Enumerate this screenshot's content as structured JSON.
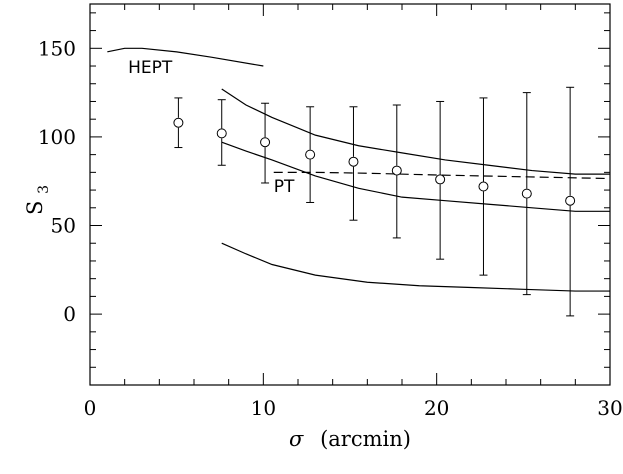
{
  "chart_data": {
    "type": "scatter",
    "title": "",
    "xlabel_symbol": "σ",
    "xlabel_unit": "(arcmin)",
    "ylabel_main": "S",
    "ylabel_sub": "3",
    "xlim": [
      0,
      30
    ],
    "ylim": [
      -40,
      175
    ],
    "xticks": [
      0,
      10,
      20,
      30
    ],
    "yticks": [
      0,
      50,
      100,
      150
    ],
    "grid": false,
    "legend": "none",
    "points": {
      "x": [
        5.1,
        7.6,
        10.1,
        12.7,
        15.2,
        17.7,
        20.2,
        22.7,
        25.2,
        27.7
      ],
      "y": [
        108,
        102,
        97,
        90,
        86,
        81,
        76,
        72,
        68,
        64
      ],
      "err_low": [
        94,
        84,
        74,
        63,
        53,
        43,
        31,
        22,
        11,
        -1
      ],
      "err_high": [
        122,
        121,
        119,
        117,
        117,
        118,
        120,
        122,
        125,
        128
      ]
    },
    "curves": [
      {
        "style": "solid",
        "x": [
          1,
          2,
          3,
          5,
          7,
          10
        ],
        "y": [
          148,
          150,
          150,
          148,
          145,
          140
        ]
      },
      {
        "style": "solid",
        "x": [
          7.6,
          9,
          10.5,
          13,
          15.5,
          18,
          20.5,
          23,
          25.5,
          28,
          30
        ],
        "y": [
          127,
          118,
          111,
          101,
          95,
          91,
          87,
          84,
          81,
          79,
          79
        ]
      },
      {
        "style": "solid",
        "x": [
          7.6,
          9,
          10.5,
          13,
          15.5,
          18,
          20.5,
          23,
          25.5,
          28,
          30
        ],
        "y": [
          97,
          92,
          87,
          78,
          71,
          66,
          64,
          62,
          60,
          58,
          58
        ]
      },
      {
        "style": "solid",
        "x": [
          7.6,
          9,
          10.5,
          13,
          16,
          19,
          22,
          25,
          28,
          30
        ],
        "y": [
          40,
          34,
          28,
          22,
          18,
          16,
          15,
          14,
          13,
          13
        ]
      },
      {
        "style": "dashed",
        "x": [
          10.6,
          13,
          16,
          20,
          25,
          30
        ],
        "y": [
          80,
          80,
          79.5,
          78.5,
          77.5,
          76.5
        ]
      }
    ],
    "annotations": [
      {
        "text": "HEPT",
        "x": 2.2,
        "y": 136
      },
      {
        "text": "PT",
        "x": 10.6,
        "y": 69
      }
    ]
  }
}
